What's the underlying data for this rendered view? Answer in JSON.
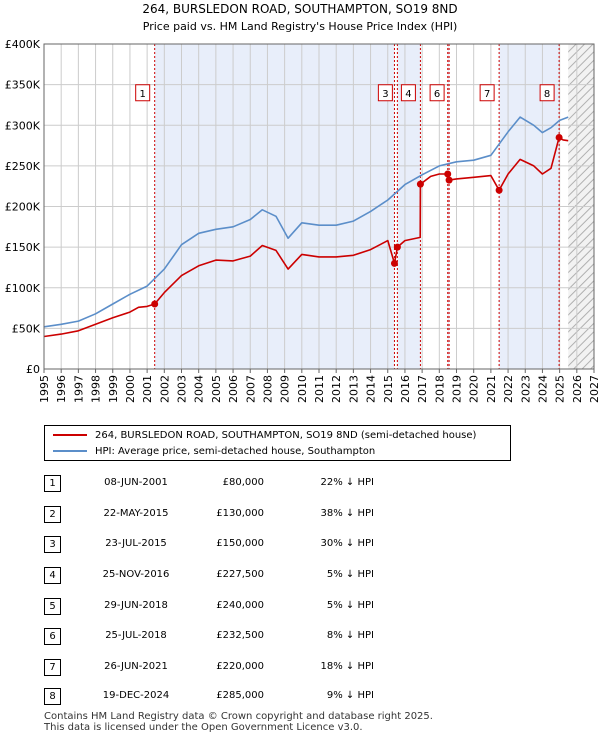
{
  "colors": {
    "property_line": "#cc0000",
    "hpi_line": "#5b8ec9",
    "shade": "#e8eefa",
    "hatch": "#bdbdbd",
    "vline": "#cc0000",
    "grid": "#cccccc"
  },
  "chart_data": {
    "type": "line",
    "title": "264, BURSLEDON ROAD, SOUTHAMPTON, SO19 8ND",
    "subtitle": "Price paid vs. HM Land Registry's House Price Index (HPI)",
    "xlabel": "",
    "ylabel": "",
    "xlim": [
      1995,
      2027
    ],
    "ylim": [
      0,
      400000
    ],
    "x_ticks": [
      "1995",
      "1996",
      "1997",
      "1998",
      "1999",
      "2000",
      "2001",
      "2002",
      "2003",
      "2004",
      "2005",
      "2006",
      "2007",
      "2008",
      "2009",
      "2010",
      "2011",
      "2012",
      "2013",
      "2014",
      "2015",
      "2016",
      "2017",
      "2018",
      "2019",
      "2020",
      "2021",
      "2022",
      "2023",
      "2024",
      "2025",
      "2026",
      "2027"
    ],
    "y_ticks": [
      {
        "value": 0,
        "label": "£0"
      },
      {
        "value": 50000,
        "label": "£50K"
      },
      {
        "value": 100000,
        "label": "£100K"
      },
      {
        "value": 150000,
        "label": "£150K"
      },
      {
        "value": 200000,
        "label": "£200K"
      },
      {
        "value": 250000,
        "label": "£250K"
      },
      {
        "value": 300000,
        "label": "£300K"
      },
      {
        "value": 350000,
        "label": "£350K"
      },
      {
        "value": 400000,
        "label": "£400K"
      }
    ],
    "shaded_ranges": [
      [
        2001.44,
        2015.39
      ],
      [
        2015.56,
        2016.9
      ],
      [
        2018.49,
        2018.57
      ],
      [
        2021.48,
        2024.97
      ]
    ],
    "future_hatch_from": 2025.5,
    "series": [
      {
        "name": "264, BURSLEDON ROAD, SOUTHAMPTON, SO19 8ND (semi-detached house)",
        "x": [
          1995.0,
          1996.0,
          1997.0,
          1998.0,
          1999.0,
          2000.0,
          2000.5,
          2001.0,
          2001.44,
          2002.0,
          2003.0,
          2004.0,
          2005.0,
          2006.0,
          2007.0,
          2007.7,
          2008.5,
          2009.2,
          2010.0,
          2011.0,
          2012.0,
          2013.0,
          2014.0,
          2015.0,
          2015.39,
          2015.56,
          2016.0,
          2016.89,
          2016.9,
          2017.5,
          2018.0,
          2018.49,
          2018.57,
          2019.0,
          2020.0,
          2021.0,
          2021.48,
          2022.0,
          2022.7,
          2023.5,
          2024.0,
          2024.5,
          2024.97,
          2025.2,
          2025.5
        ],
        "values": [
          40000,
          43000,
          47000,
          55000,
          63000,
          70000,
          76000,
          77000,
          80000,
          94000,
          115000,
          127000,
          134000,
          133000,
          139000,
          152000,
          146000,
          123000,
          141000,
          138000,
          138000,
          140000,
          147000,
          158000,
          130000,
          150000,
          158000,
          162000,
          227500,
          237000,
          240000,
          240000,
          232500,
          234000,
          236000,
          238000,
          220000,
          240000,
          258000,
          250000,
          240000,
          247000,
          285000,
          282000,
          281000
        ]
      },
      {
        "name": "HPI: Average price, semi-detached house, Southampton",
        "x": [
          1995.0,
          1996.0,
          1997.0,
          1998.0,
          1999.0,
          2000.0,
          2001.0,
          2002.0,
          2003.0,
          2004.0,
          2005.0,
          2006.0,
          2007.0,
          2007.7,
          2008.5,
          2009.2,
          2010.0,
          2011.0,
          2012.0,
          2013.0,
          2014.0,
          2015.0,
          2016.0,
          2017.0,
          2018.0,
          2019.0,
          2020.0,
          2021.0,
          2022.0,
          2022.7,
          2023.5,
          2024.0,
          2024.5,
          2025.0,
          2025.5
        ],
        "values": [
          52000,
          55000,
          59000,
          68000,
          80000,
          92000,
          102000,
          123000,
          153000,
          167000,
          172000,
          175000,
          184000,
          196000,
          188000,
          161000,
          180000,
          177000,
          177000,
          182000,
          194000,
          208000,
          227000,
          239000,
          250000,
          255000,
          257000,
          263000,
          292000,
          310000,
          300000,
          291000,
          297000,
          306000,
          310000
        ]
      }
    ],
    "transactions": [
      {
        "num": "1",
        "date": "08-JUN-2001",
        "price": "£80,000",
        "hpi": "22% ↓ HPI",
        "x": 2001.44,
        "y": 80000
      },
      {
        "num": "2",
        "date": "22-MAY-2015",
        "price": "£130,000",
        "hpi": "38% ↓ HPI",
        "x": 2015.39,
        "y": 130000
      },
      {
        "num": "3",
        "date": "23-JUL-2015",
        "price": "£150,000",
        "hpi": "30% ↓ HPI",
        "x": 2015.56,
        "y": 150000
      },
      {
        "num": "4",
        "date": "25-NOV-2016",
        "price": "£227,500",
        "hpi": "5% ↓ HPI",
        "x": 2016.9,
        "y": 227500
      },
      {
        "num": "5",
        "date": "29-JUN-2018",
        "price": "£240,000",
        "hpi": "5% ↓ HPI",
        "x": 2018.49,
        "y": 240000
      },
      {
        "num": "6",
        "date": "25-JUL-2018",
        "price": "£232,500",
        "hpi": "8% ↓ HPI",
        "x": 2018.57,
        "y": 232500
      },
      {
        "num": "7",
        "date": "26-JUN-2021",
        "price": "£220,000",
        "hpi": "18% ↓ HPI",
        "x": 2021.48,
        "y": 220000
      },
      {
        "num": "8",
        "date": "19-DEC-2024",
        "price": "£285,000",
        "hpi": "9% ↓ HPI",
        "x": 2024.97,
        "y": 285000
      }
    ],
    "chart_labels": [
      "1",
      "3",
      "4",
      "6",
      "7",
      "8"
    ]
  },
  "legend": {
    "property": "264, BURSLEDON ROAD, SOUTHAMPTON, SO19 8ND (semi-detached house)",
    "hpi": "HPI: Average price, semi-detached house, Southampton"
  },
  "footer": {
    "line1": "Contains HM Land Registry data © Crown copyright and database right 2025.",
    "line2": "This data is licensed under the Open Government Licence v3.0."
  }
}
